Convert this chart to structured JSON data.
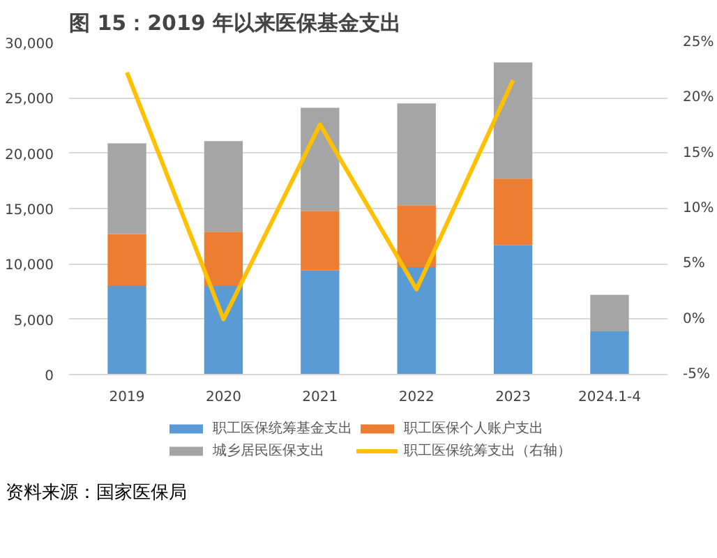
{
  "chart_data": {
    "type": "bar",
    "title": "图 15：2019 年以来医保基金支出",
    "stacked": true,
    "categories": [
      "2019",
      "2020",
      "2021",
      "2022",
      "2023",
      "2024.1-4"
    ],
    "series": [
      {
        "name": "职工医保统筹基金支出",
        "color": "#5b9bd5",
        "values": [
          8000,
          8000,
          9400,
          9700,
          11700,
          3900
        ]
      },
      {
        "name": "职工医保个人账户支出",
        "color": "#ed7d31",
        "values": [
          4700,
          4900,
          5400,
          5600,
          6000,
          null
        ]
      },
      {
        "name": "城乡居民医保支出",
        "color": "#a5a5a5",
        "values": [
          8200,
          8200,
          9300,
          9200,
          10500,
          3300
        ]
      },
      {
        "name": "职工医保统筹支出（右轴）",
        "color": "#ffc000",
        "type": "line",
        "axis": "y2",
        "values": [
          22.3,
          0,
          17.6,
          2.7,
          21.6,
          null
        ]
      }
    ],
    "ylim": [
      0,
      30000
    ],
    "yticks": [
      0,
      {
        "value": 5000,
        "label": "5,000"
      },
      {
        "value": 10000,
        "label": "10,000"
      },
      {
        "value": 15000,
        "label": "15,000"
      },
      {
        "value": 20000,
        "label": "20,000"
      },
      {
        "value": 25000,
        "label": "25,000"
      },
      {
        "value": 30000,
        "label": "30,000"
      }
    ],
    "y2lim": [
      -5,
      25
    ],
    "y2ticks": [
      {
        "value": -5,
        "label": "-5%"
      },
      {
        "value": 0,
        "label": "0%"
      },
      {
        "value": 5,
        "label": "5%"
      },
      {
        "value": 10,
        "label": "10%"
      },
      {
        "value": 15,
        "label": "15%"
      },
      {
        "value": 20,
        "label": "20%"
      },
      {
        "value": 25,
        "label": "25%"
      }
    ],
    "grid": "y",
    "legend": "bottom",
    "marker": "none",
    "line_style": "solid",
    "annotations": [
      "资料来源：国家医保局"
    ]
  }
}
